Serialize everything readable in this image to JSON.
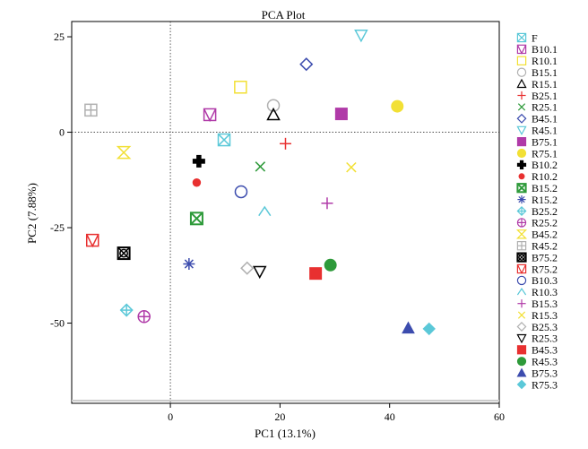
{
  "chart_data": {
    "type": "scatter",
    "title": "PCA Plot",
    "xlabel": "PC1 (13.1%)",
    "ylabel": "PC2 (7.88%)",
    "xlim": [
      -18,
      60
    ],
    "ylim": [
      -71,
      29
    ],
    "xticks": [
      "0",
      "20",
      "40",
      "60"
    ],
    "yticks": [
      "25",
      "0",
      "-25",
      "-50"
    ],
    "reference_lines": {
      "x": 0,
      "y": 0
    },
    "grid": false,
    "legend_position": "right",
    "series": [
      {
        "name": "F",
        "marker": "square-x",
        "color": "#5bc8d8",
        "x": 9.8,
        "y": -2.0
      },
      {
        "name": "B10.1",
        "marker": "square-v",
        "color": "#b03aa8",
        "x": 7.2,
        "y": 4.6
      },
      {
        "name": "R10.1",
        "marker": "square",
        "color": "#f2e035",
        "x": 12.8,
        "y": 11.8
      },
      {
        "name": "B15.1",
        "marker": "circle",
        "color": "#b0b0b0",
        "x": 18.8,
        "y": 7.0
      },
      {
        "name": "R15.1",
        "marker": "triangle-up",
        "color": "#000000",
        "x": 18.8,
        "y": 4.6
      },
      {
        "name": "B25.1",
        "marker": "plus",
        "color": "#e83030",
        "x": 21.0,
        "y": -3.0
      },
      {
        "name": "R25.1",
        "marker": "x",
        "color": "#2e9a3a",
        "x": 16.4,
        "y": -9.0
      },
      {
        "name": "B45.1",
        "marker": "diamond",
        "color": "#3c4cae",
        "x": 24.8,
        "y": 17.8
      },
      {
        "name": "R45.1",
        "marker": "triangle-down",
        "color": "#5bc8d8",
        "x": 34.8,
        "y": 25.4
      },
      {
        "name": "B75.1",
        "marker": "square-filled",
        "color": "#b03aa8",
        "x": 31.2,
        "y": 4.8
      },
      {
        "name": "R75.1",
        "marker": "circle-filled",
        "color": "#f2e035",
        "x": 41.4,
        "y": 6.8
      },
      {
        "name": "B10.2",
        "marker": "cross-filled",
        "color": "#000000",
        "x": 5.2,
        "y": -7.6
      },
      {
        "name": "R10.2",
        "marker": "dot-filled",
        "color": "#e83030",
        "x": 4.8,
        "y": -13.2
      },
      {
        "name": "B15.2",
        "marker": "square-x-filled",
        "color": "#2e9a3a",
        "x": 4.8,
        "y": -22.6
      },
      {
        "name": "R15.2",
        "marker": "asterisk",
        "color": "#3c4cae",
        "x": 3.4,
        "y": -34.5
      },
      {
        "name": "B25.2",
        "marker": "diamond-plus",
        "color": "#5bc8d8",
        "x": -8.0,
        "y": -46.6
      },
      {
        "name": "R25.2",
        "marker": "circle-plus",
        "color": "#b03aa8",
        "x": -4.8,
        "y": -48.3
      },
      {
        "name": "B45.2",
        "marker": "hourglass",
        "color": "#f2e035",
        "x": -8.5,
        "y": -5.3
      },
      {
        "name": "R45.2",
        "marker": "square-plus",
        "color": "#b0b0b0",
        "x": -14.5,
        "y": 5.8
      },
      {
        "name": "B75.2",
        "marker": "square-xcircle",
        "color": "#000000",
        "x": -8.5,
        "y": -31.7
      },
      {
        "name": "R75.2",
        "marker": "square-v",
        "color": "#e83030",
        "x": -14.2,
        "y": -28.3
      },
      {
        "name": "B10.3",
        "marker": "circle",
        "color": "#3c4cae",
        "x": 12.9,
        "y": -15.6
      },
      {
        "name": "R10.3",
        "marker": "caret",
        "color": "#5bc8d8",
        "x": 17.2,
        "y": -20.8
      },
      {
        "name": "B15.3",
        "marker": "plus",
        "color": "#b03aa8",
        "x": 28.6,
        "y": -18.6
      },
      {
        "name": "R15.3",
        "marker": "x",
        "color": "#f2e035",
        "x": 33.0,
        "y": -9.2
      },
      {
        "name": "B25.3",
        "marker": "diamond",
        "color": "#b0b0b0",
        "x": 14.0,
        "y": -35.6
      },
      {
        "name": "R25.3",
        "marker": "triangle-down",
        "color": "#000000",
        "x": 16.3,
        "y": -36.5
      },
      {
        "name": "B45.3",
        "marker": "square-filled",
        "color": "#e83030",
        "x": 26.5,
        "y": -37.0
      },
      {
        "name": "R45.3",
        "marker": "circle-filled",
        "color": "#2e9a3a",
        "x": 29.2,
        "y": -34.8
      },
      {
        "name": "B75.3",
        "marker": "triangle-filled",
        "color": "#3c4cae",
        "x": 43.4,
        "y": -51.3
      },
      {
        "name": "R75.3",
        "marker": "diamond-filled",
        "color": "#5bc8d8",
        "x": 47.2,
        "y": -51.5
      }
    ]
  }
}
